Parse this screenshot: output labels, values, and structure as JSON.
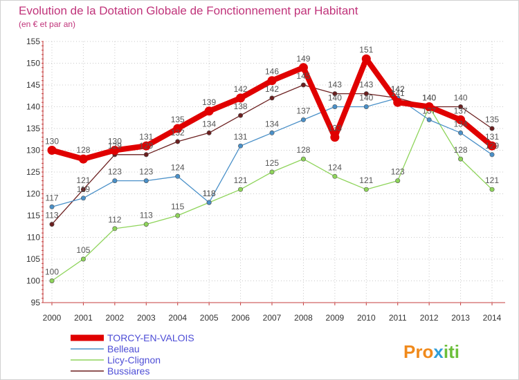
{
  "chart_data": {
    "type": "line",
    "title": "Evolution de la Dotation Globale de Fonctionnement par Habitant",
    "subtitle": "(en € et par an)",
    "xlabel": "",
    "ylabel": "",
    "x": [
      "2000",
      "2001",
      "2002",
      "2003",
      "2004",
      "2005",
      "2006",
      "2007",
      "2008",
      "2009",
      "2010",
      "2011",
      "2012",
      "2013",
      "2014"
    ],
    "yticks": [
      95,
      100,
      105,
      110,
      115,
      120,
      125,
      130,
      135,
      140,
      145,
      150,
      155
    ],
    "ylim": [
      95,
      155
    ],
    "grid": true,
    "legend": "bottom-left",
    "series": [
      {
        "name": "TORCY-EN-VALOIS",
        "color": "#e00000",
        "values": [
          130,
          128,
          130,
          131,
          135,
          139,
          142,
          146,
          149,
          133,
          151,
          141,
          140,
          137,
          131
        ]
      },
      {
        "name": "Belleau",
        "color": "#4a90c8",
        "values": [
          117,
          119,
          123,
          123,
          124,
          118,
          131,
          134,
          137,
          140,
          140,
          142,
          137,
          134,
          129
        ]
      },
      {
        "name": "Licy-Clignon",
        "color": "#8ed45a",
        "values": [
          100,
          105,
          112,
          113,
          115,
          118,
          121,
          125,
          128,
          124,
          121,
          123,
          140,
          128,
          121
        ]
      },
      {
        "name": "Bussiares",
        "color": "#6b1f1f",
        "values": [
          113,
          121,
          129,
          129,
          132,
          134,
          138,
          142,
          145,
          143,
          143,
          142,
          140,
          140,
          135
        ]
      }
    ]
  },
  "logo": {
    "text": "Proxiti",
    "colors": [
      "#f08a1c",
      "#2f9ed8",
      "#6cbf3a"
    ]
  }
}
